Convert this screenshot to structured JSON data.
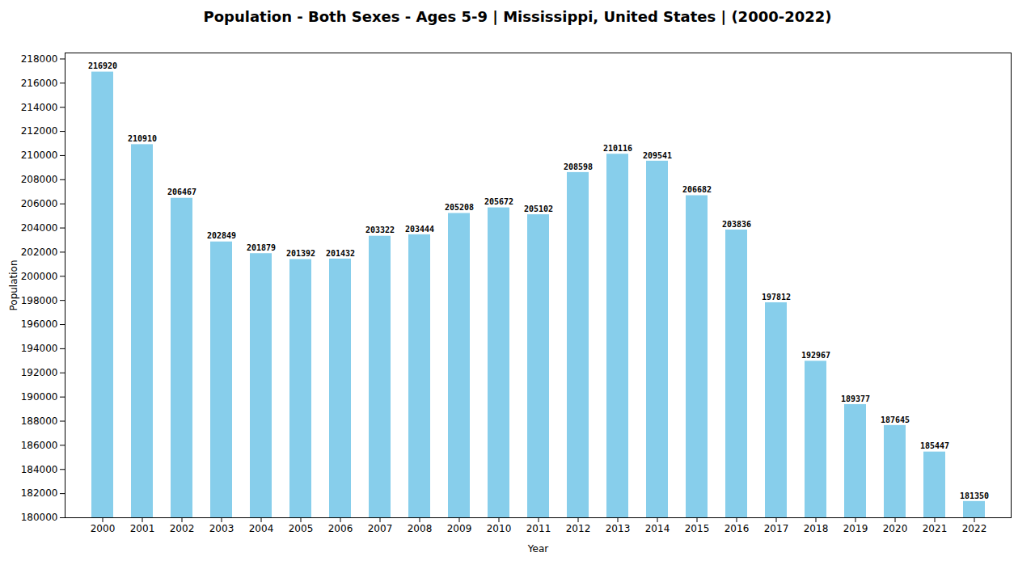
{
  "chart_data": {
    "type": "bar",
    "title": "Population - Both Sexes - Ages 5-9 | Mississippi, United States |  (2000-2022)",
    "x_label": "Year",
    "y_label": "Population",
    "categories": [
      "2000",
      "2001",
      "2002",
      "2003",
      "2004",
      "2005",
      "2006",
      "2007",
      "2008",
      "2009",
      "2010",
      "2011",
      "2012",
      "2013",
      "2014",
      "2015",
      "2016",
      "2017",
      "2018",
      "2019",
      "2020",
      "2021",
      "2022"
    ],
    "values": [
      216920,
      210910,
      206467,
      202849,
      201879,
      201392,
      201432,
      203322,
      203444,
      205208,
      205672,
      205102,
      208598,
      210116,
      209541,
      206682,
      203836,
      197812,
      192967,
      189377,
      187645,
      185447,
      181350
    ],
    "color": "#87CEEB",
    "ylim": [
      180000,
      218500
    ],
    "yticks": [
      180000,
      182000,
      184000,
      186000,
      188000,
      190000,
      192000,
      194000,
      196000,
      198000,
      200000,
      202000,
      204000,
      206000,
      208000,
      210000,
      212000,
      214000,
      216000,
      218000
    ],
    "data_labels": true,
    "grid": false
  }
}
